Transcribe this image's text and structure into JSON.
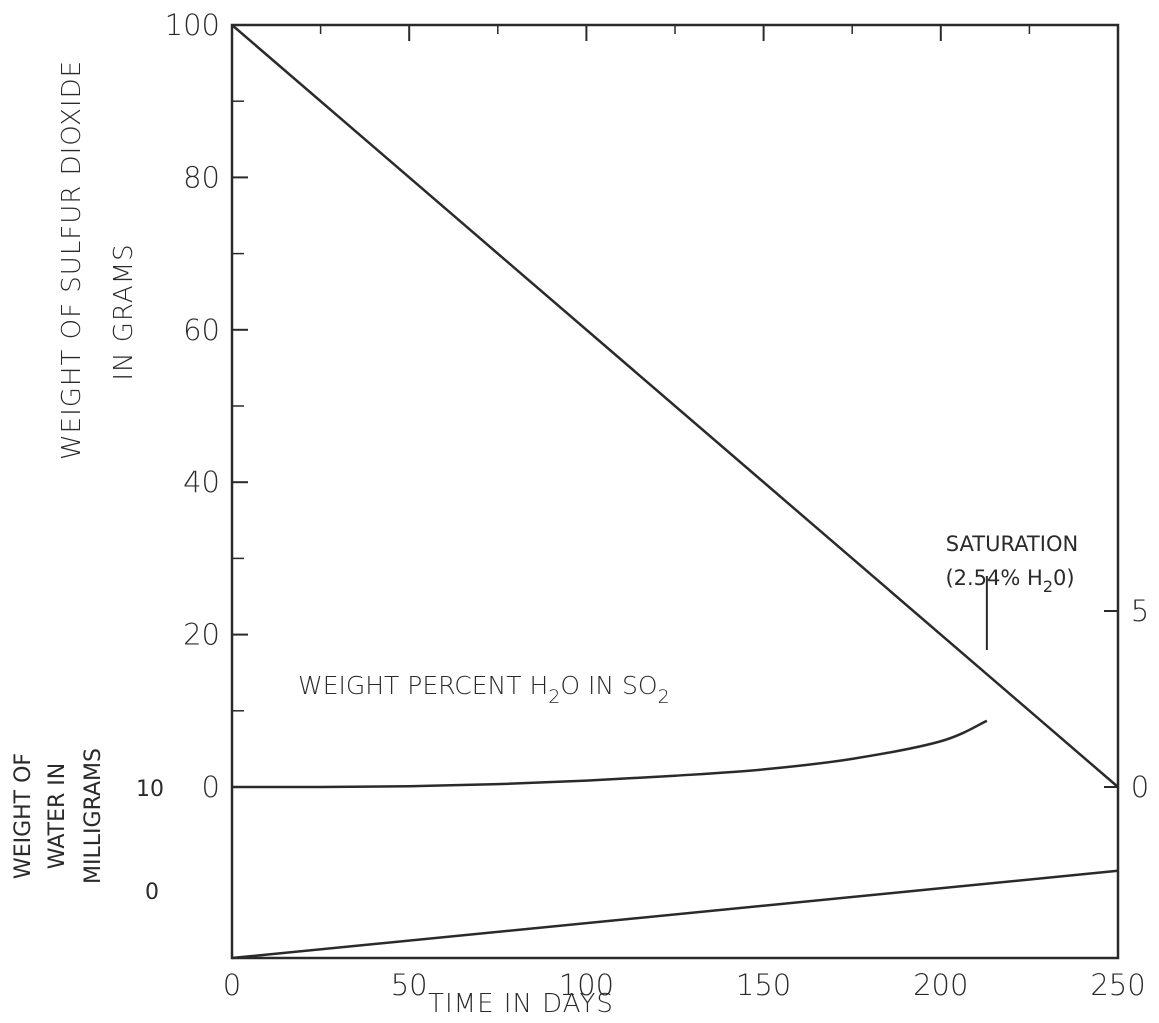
{
  "chart_data": {
    "type": "line",
    "x_axis": {
      "label": "TIME IN DAYS",
      "range": [
        0,
        250
      ],
      "ticks": [
        0,
        50,
        100,
        150,
        200,
        250
      ],
      "tick_labels": [
        "0",
        "50",
        "100",
        "150",
        "200",
        "250"
      ]
    },
    "y_axis_left_upper": {
      "label_line1": "WEIGHT OF SULFUR DIOXIDE",
      "label_line2": "IN GRAMS",
      "range": [
        0,
        100
      ],
      "ticks": [
        0,
        20,
        40,
        60,
        80,
        100
      ],
      "tick_labels": [
        "0",
        "20",
        "40",
        "60",
        "80",
        "100"
      ]
    },
    "y_axis_left_lower": {
      "label_lines": [
        "WEIGHT OF",
        "WATER IN",
        "MILLIGRAMS"
      ],
      "range": [
        0,
        10
      ],
      "ticks": [
        0,
        10
      ],
      "tick_labels": [
        "0",
        "10"
      ]
    },
    "y_axis_right": {
      "range": [
        0,
        5
      ],
      "ticks": [
        0,
        5
      ],
      "tick_labels": [
        "0",
        "5"
      ]
    },
    "series": [
      {
        "axis": "left_upper",
        "x": [
          0,
          250
        ],
        "y": [
          100,
          0
        ]
      },
      {
        "name_parts": [
          "WEIGHT PERCENT H",
          "2",
          "O IN SO",
          "2"
        ],
        "axis": "right",
        "x": [
          0,
          25,
          50,
          75,
          100,
          125,
          150,
          175,
          200,
          213
        ],
        "y": [
          0,
          0,
          0.02,
          0.08,
          0.18,
          0.32,
          0.5,
          0.8,
          1.3,
          1.88
        ]
      },
      {
        "axis": "left_lower",
        "x": [
          0,
          250
        ],
        "y": [
          0,
          5.1
        ]
      }
    ],
    "annotations": {
      "saturation_line1": "SATURATION",
      "saturation_line2_parts": [
        "(2.54% H",
        "2",
        "0)"
      ],
      "saturation_x": 213
    }
  }
}
